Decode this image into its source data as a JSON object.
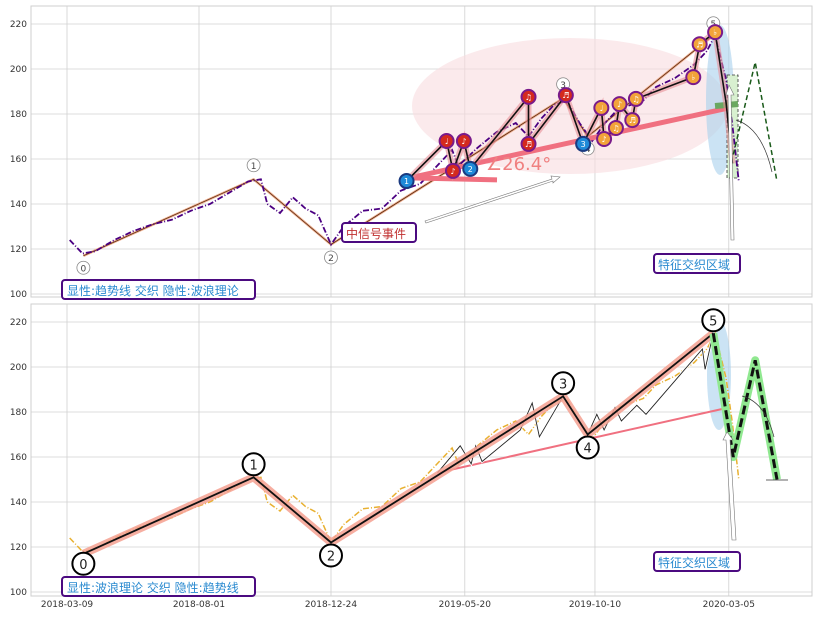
{
  "chart_data": [
    {
      "type": "line",
      "panel": "top",
      "ylim": [
        100,
        225
      ],
      "yticks": [
        100,
        120,
        140,
        160,
        180,
        200,
        220
      ],
      "xticks": [
        "2018-03-09",
        "2018-08-01",
        "2018-12-24",
        "2019-05-20",
        "2019-10-10",
        "2020-03-05"
      ],
      "grid": true,
      "price_color": "#4b0082",
      "price": [
        [
          "2018-03-12",
          124
        ],
        [
          "2018-03-26",
          118
        ],
        [
          "2018-04-09",
          119
        ],
        [
          "2018-04-30",
          124
        ],
        [
          "2018-05-21",
          128
        ],
        [
          "2018-06-11",
          131
        ],
        [
          "2018-07-02",
          133
        ],
        [
          "2018-07-23",
          137
        ],
        [
          "2018-08-13",
          140
        ],
        [
          "2018-09-03",
          145
        ],
        [
          "2018-09-24",
          150
        ],
        [
          "2018-10-08",
          151
        ],
        [
          "2018-10-15",
          140
        ],
        [
          "2018-10-29",
          136
        ],
        [
          "2018-11-12",
          143
        ],
        [
          "2018-11-26",
          138
        ],
        [
          "2018-12-10",
          135
        ],
        [
          "2018-12-24",
          122
        ],
        [
          "2019-01-07",
          130
        ],
        [
          "2019-01-28",
          137
        ],
        [
          "2019-02-18",
          138
        ],
        [
          "2019-03-11",
          146
        ],
        [
          "2019-04-01",
          149
        ],
        [
          "2019-04-22",
          158
        ],
        [
          "2019-05-06",
          164
        ],
        [
          "2019-05-13",
          157
        ],
        [
          "2019-06-03",
          165
        ],
        [
          "2019-06-24",
          172
        ],
        [
          "2019-07-15",
          176
        ],
        [
          "2019-07-29",
          170
        ],
        [
          "2019-08-12",
          178
        ],
        [
          "2019-08-26",
          184
        ],
        [
          "2019-09-09",
          186
        ],
        [
          "2019-09-23",
          176
        ],
        [
          "2019-10-07",
          168
        ],
        [
          "2019-10-21",
          176
        ],
        [
          "2019-11-04",
          182
        ],
        [
          "2019-11-18",
          184
        ],
        [
          "2019-12-02",
          186
        ],
        [
          "2019-12-16",
          192
        ],
        [
          "2020-01-06",
          196
        ],
        [
          "2020-01-27",
          202
        ],
        [
          "2020-02-10",
          208
        ],
        [
          "2020-02-19",
          215
        ],
        [
          "2020-03-02",
          195
        ],
        [
          "2020-03-09",
          175
        ],
        [
          "2020-03-16",
          150
        ]
      ],
      "wave_points": [
        {
          "label": "0",
          "date": "2018-03-27",
          "value": 117
        },
        {
          "label": "1",
          "date": "2018-09-30",
          "value": 151
        },
        {
          "label": "2",
          "date": "2018-12-24",
          "value": 122
        },
        {
          "label": "3",
          "date": "2019-09-05",
          "value": 187
        },
        {
          "label": "4",
          "date": "2019-10-02",
          "value": 170
        },
        {
          "label": "5",
          "date": "2020-02-17",
          "value": 215
        }
      ],
      "trendline": {
        "start": [
          "2019-03-20",
          151.6
        ],
        "end": [
          "2020-03-05",
          182.7
        ],
        "angle_label": "∠26.4°"
      },
      "signal_markers": [
        {
          "date": "2019-03-17",
          "value": 150.2,
          "kind": "blue",
          "symbol": "1"
        },
        {
          "date": "2019-04-30",
          "value": 168,
          "kind": "red",
          "symbol": "♩"
        },
        {
          "date": "2019-05-07",
          "value": 154.7,
          "kind": "red",
          "symbol": "♪"
        },
        {
          "date": "2019-05-19",
          "value": 168,
          "kind": "red",
          "symbol": "♪"
        },
        {
          "date": "2019-05-26",
          "value": 155.6,
          "kind": "blue",
          "symbol": "2"
        },
        {
          "date": "2019-07-29",
          "value": 187.6,
          "kind": "red",
          "symbol": "♫"
        },
        {
          "date": "2019-07-29",
          "value": 166.7,
          "kind": "red",
          "symbol": "♬"
        },
        {
          "date": "2019-09-08",
          "value": 188.4,
          "kind": "red",
          "symbol": "♬"
        },
        {
          "date": "2019-09-27",
          "value": 166.7,
          "kind": "blue",
          "symbol": "3"
        },
        {
          "date": "2019-10-17",
          "value": 182.7,
          "kind": "orange",
          "symbol": "♩"
        },
        {
          "date": "2019-10-20",
          "value": 168.9,
          "kind": "orange",
          "symbol": "♪"
        },
        {
          "date": "2019-11-02",
          "value": 173.8,
          "kind": "orange",
          "symbol": "♫"
        },
        {
          "date": "2019-11-06",
          "value": 184.4,
          "kind": "orange",
          "symbol": "♪"
        },
        {
          "date": "2019-11-20",
          "value": 177.3,
          "kind": "orange",
          "symbol": "♬"
        },
        {
          "date": "2019-11-24",
          "value": 186.7,
          "kind": "orange",
          "symbol": "♫"
        },
        {
          "date": "2020-01-26",
          "value": 196.4,
          "kind": "orange",
          "symbol": "♭"
        },
        {
          "date": "2020-02-02",
          "value": 211,
          "kind": "orange",
          "symbol": "♬"
        },
        {
          "date": "2020-02-19",
          "value": 216.4,
          "kind": "orange",
          "symbol": "♭"
        }
      ],
      "projection": [
        [
          "2020-03-10",
          162
        ],
        [
          "2020-04-03",
          203
        ],
        [
          "2020-04-27",
          150
        ]
      ],
      "annotations": {
        "legend_box": "显性:趋势线 交织 隐性:波浪理论",
        "signal_event": "中信号事件",
        "feature_zone": "特征交织区域"
      }
    },
    {
      "type": "line",
      "panel": "bottom",
      "ylim": [
        100,
        225
      ],
      "yticks": [
        100,
        120,
        140,
        160,
        180,
        200,
        220
      ],
      "xticks": [
        "2018-03-09",
        "2018-08-01",
        "2018-12-24",
        "2019-05-20",
        "2019-10-10",
        "2020-03-05"
      ],
      "grid": true,
      "price_color": "#e8b030",
      "wave_points": [
        {
          "label": "0",
          "date": "2018-03-27",
          "value": 117
        },
        {
          "label": "1",
          "date": "2018-09-30",
          "value": 151
        },
        {
          "label": "2",
          "date": "2018-12-24",
          "value": 122
        },
        {
          "label": "3",
          "date": "2019-09-05",
          "value": 187
        },
        {
          "label": "4",
          "date": "2019-10-02",
          "value": 170
        },
        {
          "label": "5",
          "date": "2020-02-17",
          "value": 215
        }
      ],
      "trendline": {
        "start": [
          "2019-04-20",
          153
        ],
        "end": [
          "2020-03-05",
          182
        ]
      },
      "projection": [
        [
          "2020-03-10",
          160
        ],
        [
          "2020-04-03",
          203
        ],
        [
          "2020-04-27",
          150
        ]
      ],
      "annotations": {
        "legend_box": "显性:波浪理论 交织 隐性:趋势线",
        "feature_zone": "特征交织区域"
      }
    }
  ],
  "colors": {
    "trend": "#f07080",
    "wave_glow": "#f4a090",
    "marker_red": "#d42a1e",
    "marker_orange": "#f2a33a",
    "marker_blue": "#1f8ad8",
    "marker_border": "#7a1a8a",
    "box_border": "#4b0a80",
    "box_text": "#2a8ad0",
    "signal_text": "#c03030",
    "projection_glow": "#90e890"
  }
}
